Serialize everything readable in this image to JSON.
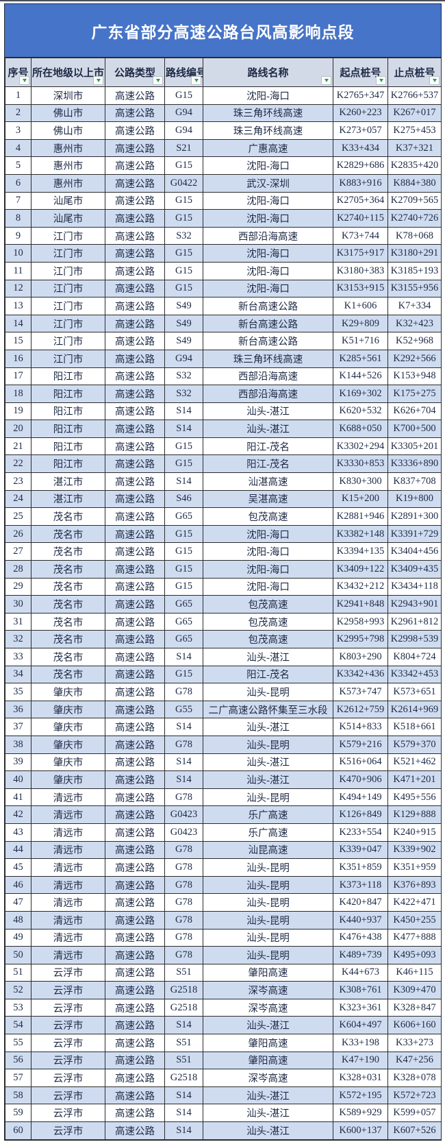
{
  "title": "广东省部分高速公路台风高影响点段",
  "colors": {
    "title_bar_bg": "#4674C8",
    "title_text": "#ffffff",
    "header_bg": "#D3DAE7",
    "row_alt_bg": "#CFDCF0",
    "row_bg": "#ffffff",
    "grid_border": "#2b2b2b",
    "cell_text": "#1d2945",
    "filter_arrow_green": "#2E9E50"
  },
  "icons": {
    "header_filter": "filter-dropdown-arrow"
  },
  "table": {
    "headers": [
      "序号",
      "所在地级以上市",
      "公路类型",
      "路线编号",
      "路线名称",
      "起点桩号",
      "止点桩号"
    ],
    "rows": [
      [
        "1",
        "深圳市",
        "高速公路",
        "G15",
        "沈阳-海口",
        "K2765+347",
        "K2766+537"
      ],
      [
        "2",
        "佛山市",
        "高速公路",
        "G94",
        "珠三角环线高速",
        "K260+223",
        "K267+017"
      ],
      [
        "3",
        "佛山市",
        "高速公路",
        "G94",
        "珠三角环线高速",
        "K273+057",
        "K275+453"
      ],
      [
        "4",
        "惠州市",
        "高速公路",
        "S21",
        "广惠高速",
        "K33+434",
        "K37+321"
      ],
      [
        "5",
        "惠州市",
        "高速公路",
        "G15",
        "沈阳-海口",
        "K2829+686",
        "K2835+420"
      ],
      [
        "6",
        "惠州市",
        "高速公路",
        "G0422",
        "武汉-深圳",
        "K883+916",
        "K884+380"
      ],
      [
        "7",
        "汕尾市",
        "高速公路",
        "G15",
        "沈阳-海口",
        "K2705+364",
        "K2709+565"
      ],
      [
        "8",
        "汕尾市",
        "高速公路",
        "G15",
        "沈阳-海口",
        "K2740+115",
        "K2740+726"
      ],
      [
        "9",
        "江门市",
        "高速公路",
        "S32",
        "西部沿海高速",
        "K73+744",
        "K78+068"
      ],
      [
        "10",
        "江门市",
        "高速公路",
        "G15",
        "沈阳-海口",
        "K3175+917",
        "K3180+291"
      ],
      [
        "11",
        "江门市",
        "高速公路",
        "G15",
        "沈阳-海口",
        "K3180+383",
        "K3185+193"
      ],
      [
        "12",
        "江门市",
        "高速公路",
        "G15",
        "沈阳-海口",
        "K3153+915",
        "K3155+956"
      ],
      [
        "13",
        "江门市",
        "高速公路",
        "S49",
        "新台高速公路",
        "K1+606",
        "K7+334"
      ],
      [
        "14",
        "江门市",
        "高速公路",
        "S49",
        "新台高速公路",
        "K29+809",
        "K32+423"
      ],
      [
        "15",
        "江门市",
        "高速公路",
        "S49",
        "新台高速公路",
        "K51+716",
        "K52+968"
      ],
      [
        "16",
        "江门市",
        "高速公路",
        "G94",
        "珠三角环线高速",
        "K285+561",
        "K292+566"
      ],
      [
        "17",
        "阳江市",
        "高速公路",
        "S32",
        "西部沿海高速",
        "K144+526",
        "K153+948"
      ],
      [
        "18",
        "阳江市",
        "高速公路",
        "S32",
        "西部沿海高速",
        "K169+302",
        "K175+275"
      ],
      [
        "19",
        "阳江市",
        "高速公路",
        "S14",
        "汕头-湛江",
        "K620+532",
        "K626+704"
      ],
      [
        "20",
        "阳江市",
        "高速公路",
        "S14",
        "汕头-湛江",
        "K688+050",
        "K700+500"
      ],
      [
        "21",
        "阳江市",
        "高速公路",
        "G15",
        "阳江-茂名",
        "K3302+294",
        "K3305+201"
      ],
      [
        "22",
        "阳江市",
        "高速公路",
        "G15",
        "阳江-茂名",
        "K3330+853",
        "K3336+890"
      ],
      [
        "23",
        "湛江市",
        "高速公路",
        "S14",
        "汕湛高速",
        "K830+300",
        "K837+708"
      ],
      [
        "24",
        "湛江市",
        "高速公路",
        "S46",
        "吴湛高速",
        "K15+200",
        "K19+800"
      ],
      [
        "25",
        "茂名市",
        "高速公路",
        "G65",
        "包茂高速",
        "K2881+946",
        "K2891+300"
      ],
      [
        "26",
        "茂名市",
        "高速公路",
        "G15",
        "沈阳-海口",
        "K3382+148",
        "K3391+729"
      ],
      [
        "27",
        "茂名市",
        "高速公路",
        "G15",
        "沈阳-海口",
        "K3394+135",
        "K3404+456"
      ],
      [
        "28",
        "茂名市",
        "高速公路",
        "G15",
        "沈阳-海口",
        "K3409+122",
        "K3409+435"
      ],
      [
        "29",
        "茂名市",
        "高速公路",
        "G15",
        "沈阳-海口",
        "K3432+212",
        "K3434+118"
      ],
      [
        "30",
        "茂名市",
        "高速公路",
        "G65",
        "包茂高速",
        "K2941+848",
        "K2943+901"
      ],
      [
        "31",
        "茂名市",
        "高速公路",
        "G65",
        "包茂高速",
        "K2958+993",
        "K2961+812"
      ],
      [
        "32",
        "茂名市",
        "高速公路",
        "G65",
        "包茂高速",
        "K2995+798",
        "K2998+539"
      ],
      [
        "33",
        "茂名市",
        "高速公路",
        "S14",
        "汕头-湛江",
        "K803+290",
        "K804+724"
      ],
      [
        "34",
        "茂名市",
        "高速公路",
        "G15",
        "阳江-茂名",
        "K3342+436",
        "K3342+453"
      ],
      [
        "35",
        "肇庆市",
        "高速公路",
        "G78",
        "汕头-昆明",
        "K573+747",
        "K573+651"
      ],
      [
        "36",
        "肇庆市",
        "高速公路",
        "G55",
        "二广高速公路怀集至三水段",
        "K2612+759",
        "K2614+969"
      ],
      [
        "37",
        "肇庆市",
        "高速公路",
        "S14",
        "汕头-湛江",
        "K514+833",
        "K518+661"
      ],
      [
        "38",
        "肇庆市",
        "高速公路",
        "G78",
        "汕头-昆明",
        "K579+216",
        "K579+370"
      ],
      [
        "39",
        "肇庆市",
        "高速公路",
        "S14",
        "汕头-湛江",
        "K516+064",
        "K521+462"
      ],
      [
        "40",
        "肇庆市",
        "高速公路",
        "S14",
        "汕头-湛江",
        "K470+906",
        "K471+201"
      ],
      [
        "41",
        "清远市",
        "高速公路",
        "G78",
        "汕头-昆明",
        "K494+149",
        "K495+556"
      ],
      [
        "42",
        "清远市",
        "高速公路",
        "G0423",
        "乐广高速",
        "K126+849",
        "K129+888"
      ],
      [
        "43",
        "清远市",
        "高速公路",
        "G0423",
        "乐广高速",
        "K233+554",
        "K240+915"
      ],
      [
        "44",
        "清远市",
        "高速公路",
        "G78",
        "汕昆高速",
        "K339+047",
        "K339+902"
      ],
      [
        "45",
        "清远市",
        "高速公路",
        "G78",
        "汕头-昆明",
        "K351+859",
        "K351+959"
      ],
      [
        "46",
        "清远市",
        "高速公路",
        "G78",
        "汕头-昆明",
        "K373+118",
        "K376+893"
      ],
      [
        "47",
        "清远市",
        "高速公路",
        "G78",
        "汕头-昆明",
        "K420+847",
        "K422+471"
      ],
      [
        "48",
        "清远市",
        "高速公路",
        "G78",
        "汕头-昆明",
        "K440+937",
        "K450+255"
      ],
      [
        "49",
        "清远市",
        "高速公路",
        "G78",
        "汕头-昆明",
        "K476+438",
        "K477+888"
      ],
      [
        "50",
        "清远市",
        "高速公路",
        "G78",
        "汕头-昆明",
        "K489+739",
        "K495+093"
      ],
      [
        "51",
        "云浮市",
        "高速公路",
        "S51",
        "肇阳高速",
        "K44+673",
        "K46+115"
      ],
      [
        "52",
        "云浮市",
        "高速公路",
        "G2518",
        "深岑高速",
        "K308+761",
        "K309+470"
      ],
      [
        "53",
        "云浮市",
        "高速公路",
        "G2518",
        "深岑高速",
        "K323+361",
        "K328+847"
      ],
      [
        "54",
        "云浮市",
        "高速公路",
        "S14",
        "汕头-湛江",
        "K604+497",
        "K606+160"
      ],
      [
        "55",
        "云浮市",
        "高速公路",
        "S51",
        "肇阳高速",
        "K33+198",
        "K33+273"
      ],
      [
        "56",
        "云浮市",
        "高速公路",
        "S51",
        "肇阳高速",
        "K47+190",
        "K47+256"
      ],
      [
        "57",
        "云浮市",
        "高速公路",
        "G2518",
        "深岑高速",
        "K328+031",
        "K328+078"
      ],
      [
        "58",
        "云浮市",
        "高速公路",
        "S14",
        "汕头-湛江",
        "K572+195",
        "K572+723"
      ],
      [
        "59",
        "云浮市",
        "高速公路",
        "S14",
        "汕头-湛江",
        "K589+929",
        "K599+057"
      ],
      [
        "60",
        "云浮市",
        "高速公路",
        "S14",
        "汕头-湛江",
        "K600+137",
        "K607+526"
      ]
    ]
  }
}
